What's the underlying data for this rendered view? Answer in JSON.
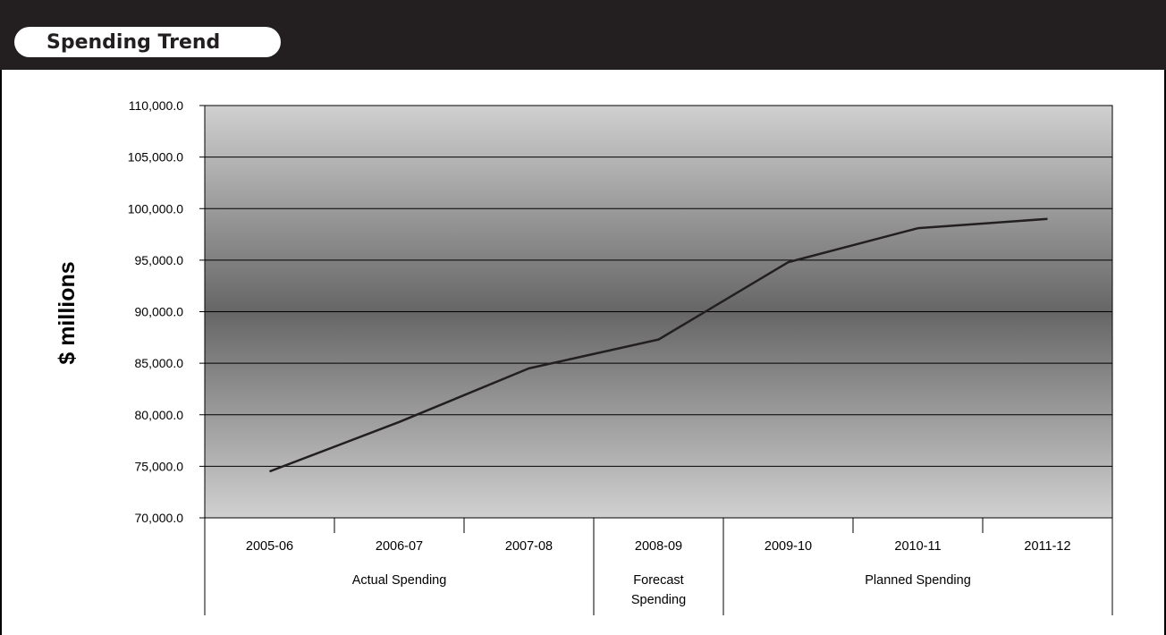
{
  "header": {
    "title": "Spending Trend"
  },
  "colors": {
    "header_bg": "#231f20",
    "line": "#231f20",
    "plot_mid": "#6a6a6a",
    "plot_edge": "#cfcfcf"
  },
  "chart_data": {
    "type": "line",
    "title": "Spending Trend",
    "xlabel": "",
    "ylabel": "$ millions",
    "ylim": [
      70000,
      110000
    ],
    "ytick_step": 5000,
    "yticks": [
      "110,000.0",
      "105,000.0",
      "100,000.0",
      "95,000.0",
      "90,000.0",
      "85,000.0",
      "80,000.0",
      "75,000.0",
      "70,000.0"
    ],
    "categories": [
      "2005-06",
      "2006-07",
      "2007-08",
      "2008-09",
      "2009-10",
      "2010-11",
      "2011-12"
    ],
    "groups": [
      {
        "label": "Actual Spending",
        "span": 3
      },
      {
        "label": "Forecast Spending",
        "span": 1
      },
      {
        "label": "Planned Spending",
        "span": 3
      }
    ],
    "series": [
      {
        "values": [
          74500,
          79300,
          84500,
          87300,
          94800,
          98100,
          99000
        ]
      }
    ],
    "grid": true,
    "legend": "none"
  }
}
